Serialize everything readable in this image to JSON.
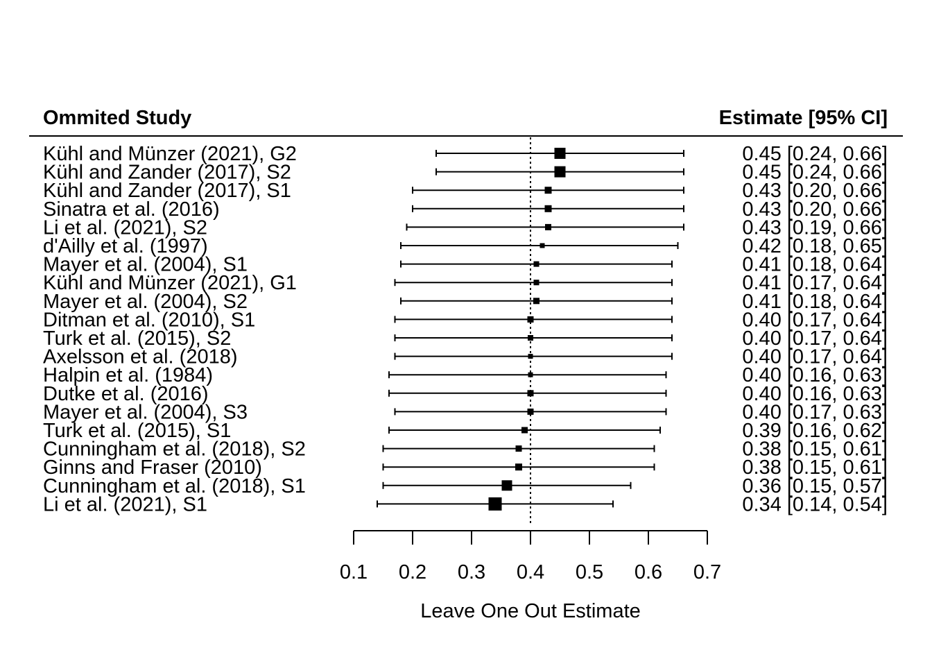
{
  "header": {
    "left": "Ommited Study",
    "right": "Estimate [95% CI]"
  },
  "chart_data": {
    "type": "forest",
    "xlabel": "Leave One Out Estimate",
    "xlim": [
      0.1,
      0.7
    ],
    "xticks": [
      "0.1",
      "0.2",
      "0.3",
      "0.4",
      "0.5",
      "0.6",
      "0.7"
    ],
    "reference_line": 0.4,
    "rows": [
      {
        "study": "Kühl and Münzer (2021), G2",
        "estimate": 0.45,
        "lower": 0.24,
        "upper": 0.66,
        "label": "0.45 [0.24, 0.66]"
      },
      {
        "study": "Kühl and Zander (2017), S2",
        "estimate": 0.45,
        "lower": 0.24,
        "upper": 0.66,
        "label": "0.45 [0.24, 0.66]"
      },
      {
        "study": "Kühl and Zander (2017), S1",
        "estimate": 0.43,
        "lower": 0.2,
        "upper": 0.66,
        "label": "0.43 [0.20, 0.66]"
      },
      {
        "study": "Sinatra et al. (2016)",
        "estimate": 0.43,
        "lower": 0.2,
        "upper": 0.66,
        "label": "0.43 [0.20, 0.66]"
      },
      {
        "study": "Li et al. (2021), S2",
        "estimate": 0.43,
        "lower": 0.19,
        "upper": 0.66,
        "label": "0.43 [0.19, 0.66]"
      },
      {
        "study": "d'Ailly et al. (1997)",
        "estimate": 0.42,
        "lower": 0.18,
        "upper": 0.65,
        "label": "0.42 [0.18, 0.65]"
      },
      {
        "study": "Mayer et al. (2004), S1",
        "estimate": 0.41,
        "lower": 0.18,
        "upper": 0.64,
        "label": "0.41 [0.18, 0.64]"
      },
      {
        "study": "Kühl and Münzer (2021), G1",
        "estimate": 0.41,
        "lower": 0.17,
        "upper": 0.64,
        "label": "0.41 [0.17, 0.64]"
      },
      {
        "study": "Mayer et al. (2004), S2",
        "estimate": 0.41,
        "lower": 0.18,
        "upper": 0.64,
        "label": "0.41 [0.18, 0.64]"
      },
      {
        "study": "Ditman et al. (2010), S1",
        "estimate": 0.4,
        "lower": 0.17,
        "upper": 0.64,
        "label": "0.40 [0.17, 0.64]"
      },
      {
        "study": "Turk et al. (2015), S2",
        "estimate": 0.4,
        "lower": 0.17,
        "upper": 0.64,
        "label": "0.40 [0.17, 0.64]"
      },
      {
        "study": "Axelsson et al. (2018)",
        "estimate": 0.4,
        "lower": 0.17,
        "upper": 0.64,
        "label": "0.40 [0.17, 0.64]"
      },
      {
        "study": "Halpin et al. (1984)",
        "estimate": 0.4,
        "lower": 0.16,
        "upper": 0.63,
        "label": "0.40 [0.16, 0.63]"
      },
      {
        "study": "Dutke et al. (2016)",
        "estimate": 0.4,
        "lower": 0.16,
        "upper": 0.63,
        "label": "0.40 [0.16, 0.63]"
      },
      {
        "study": "Mayer et al. (2004), S3",
        "estimate": 0.4,
        "lower": 0.17,
        "upper": 0.63,
        "label": "0.40 [0.17, 0.63]"
      },
      {
        "study": "Turk et al. (2015), S1",
        "estimate": 0.39,
        "lower": 0.16,
        "upper": 0.62,
        "label": "0.39 [0.16, 0.62]"
      },
      {
        "study": "Cunningham et al. (2018), S2",
        "estimate": 0.38,
        "lower": 0.15,
        "upper": 0.61,
        "label": "0.38 [0.15, 0.61]"
      },
      {
        "study": "Ginns and Fraser (2010)",
        "estimate": 0.38,
        "lower": 0.15,
        "upper": 0.61,
        "label": "0.38 [0.15, 0.61]"
      },
      {
        "study": "Cunningham et al. (2018), S1",
        "estimate": 0.36,
        "lower": 0.15,
        "upper": 0.57,
        "label": "0.36 [0.15, 0.57]"
      },
      {
        "study": "Li et al. (2021), S1",
        "estimate": 0.34,
        "lower": 0.14,
        "upper": 0.54,
        "label": "0.34 [0.14, 0.54]"
      }
    ]
  }
}
